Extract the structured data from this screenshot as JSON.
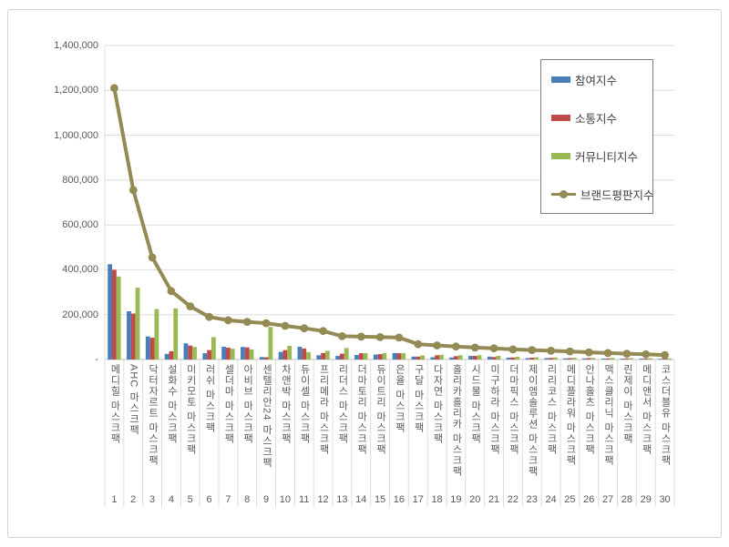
{
  "chart_data": {
    "type": "combo",
    "title": "",
    "xlabel": "",
    "ylabel": "",
    "ylim": [
      0,
      1400000
    ],
    "ytick_step": 200000,
    "ytick_labels_top_to_bottom": [
      "1,400,000",
      "1,200,000",
      "1,000,000",
      "800,000",
      "600,000",
      "400,000",
      "200,000",
      "-"
    ],
    "grid": true,
    "legend_position": "top-right",
    "categories": [
      "메디힐 마스크팩",
      "AHC 마스크팩",
      "닥터자르트 마스크팩",
      "설화수 마스크팩",
      "미키모토 마스크팩",
      "러쉬 마스크팩",
      "셀더마 마스크팩",
      "아비브 마스크팩",
      "센텔리안24 마스크팩",
      "차앤박 마스크팩",
      "듀이셀 마스크팩",
      "프리메라 마스크팩",
      "리더스 마스크팩",
      "더마토리 마스크팩",
      "듀이트리 마스크팩",
      "은율 마스크팩",
      "구달 마스크팩",
      "다자연 마스크팩",
      "홀리카홀리카 마스크팩",
      "시드물 마스크팩",
      "미구하라 마스크팩",
      "더마픽스 마스크팩",
      "제이엠솔루션 마스크팩",
      "리리코스 마스크팩",
      "메디플라워 마스크팩",
      "안나홀츠 마스크팩",
      "맥스클리닉 마스크팩",
      "린제이 마스크팩",
      "메디앤서 마스크팩",
      "코스더블유 마스크팩"
    ],
    "rank_labels": [
      "1",
      "2",
      "3",
      "4",
      "5",
      "6",
      "7",
      "8",
      "9",
      "10",
      "11",
      "12",
      "13",
      "14",
      "15",
      "16",
      "17",
      "18",
      "19",
      "20",
      "21",
      "22",
      "23",
      "24",
      "25",
      "26",
      "27",
      "28",
      "29",
      "30"
    ],
    "series": [
      {
        "name": "참여지수",
        "type": "bar",
        "color": "#4a7ebb",
        "values": [
          425000,
          215000,
          103000,
          25000,
          72000,
          28000,
          57000,
          56000,
          11000,
          34000,
          57000,
          19000,
          16000,
          20000,
          22000,
          29000,
          13000,
          10000,
          9000,
          16000,
          13000,
          8000,
          6000,
          6000,
          5000,
          5000,
          4000,
          4000,
          4000,
          3000
        ]
      },
      {
        "name": "소통지수",
        "type": "bar",
        "color": "#be4b48",
        "values": [
          400000,
          205000,
          97000,
          37000,
          62000,
          42000,
          53000,
          54000,
          10000,
          42000,
          49000,
          29000,
          26000,
          28000,
          24000,
          28000,
          13000,
          19000,
          15000,
          16000,
          11000,
          9000,
          8000,
          7000,
          6000,
          6000,
          5000,
          5000,
          4000,
          4000
        ]
      },
      {
        "name": "커뮤니티지수",
        "type": "bar",
        "color": "#98b954",
        "values": [
          370000,
          320000,
          225000,
          228000,
          56000,
          100000,
          48000,
          45000,
          145000,
          61000,
          33000,
          39000,
          51000,
          28000,
          29000,
          28000,
          18000,
          21000,
          19000,
          19000,
          16000,
          12000,
          10000,
          9000,
          8000,
          7000,
          7000,
          6000,
          6000,
          5000
        ]
      },
      {
        "name": "브랜드평판지수",
        "type": "line",
        "color": "#948a54",
        "values": [
          1210000,
          755000,
          455000,
          305000,
          237000,
          190000,
          175000,
          168000,
          162000,
          150000,
          139000,
          127000,
          104000,
          102000,
          100000,
          98000,
          68000,
          63000,
          58000,
          53000,
          50000,
          45000,
          42000,
          39000,
          36000,
          32000,
          29000,
          26000,
          23000,
          20000
        ]
      }
    ],
    "colors": {
      "grid": "#dcdcdc",
      "axis": "#bfbfbf",
      "tick_text": "#595959",
      "legend_border": "#7f7f7f"
    }
  }
}
